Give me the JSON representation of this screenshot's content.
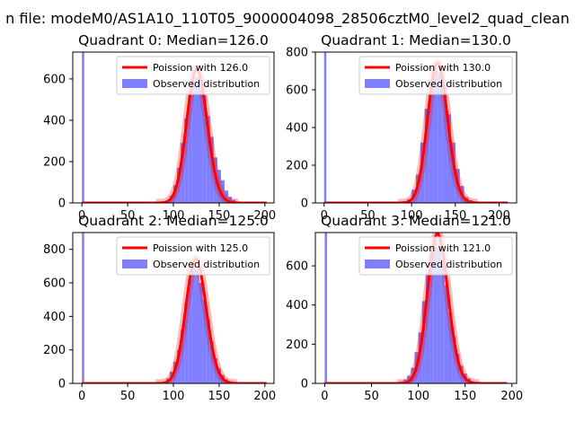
{
  "figure": {
    "suptitle": "n file: modeM0/AS1A10_110T05_9000004098_28506cztM0_level2_quad_clean",
    "colors": {
      "fit_line": "#ff0000",
      "histogram": "#7f7fff"
    }
  },
  "chart_data": [
    {
      "type": "bar",
      "title": "Quadrant 0: Median=126.0",
      "median": 126.0,
      "xlim": [
        -10,
        210
      ],
      "ylim": [
        0,
        730
      ],
      "xticks": [
        0,
        50,
        100,
        150,
        200
      ],
      "yticks": [
        0,
        200,
        400,
        600
      ],
      "legend": {
        "position": "top-right",
        "line_label": "Poission with 126.0",
        "bar_label": "Observed distribution"
      },
      "spike_bin": {
        "x": [
          0,
          2.5
        ],
        "value": 730
      },
      "bin_width": 4,
      "bins_x": [
        84,
        88,
        92,
        96,
        100,
        104,
        108,
        112,
        116,
        120,
        124,
        128,
        132,
        136,
        140,
        144,
        148,
        152,
        156,
        160,
        164,
        168
      ],
      "values": [
        2,
        4,
        12,
        35,
        85,
        170,
        290,
        410,
        520,
        590,
        610,
        600,
        520,
        420,
        320,
        220,
        160,
        110,
        60,
        30,
        15,
        5
      ],
      "fit_xrange": [
        0,
        202
      ]
    },
    {
      "type": "bar",
      "title": "Quadrant 1: Median=130.0",
      "median": 130.0,
      "xlim": [
        -10,
        220
      ],
      "ylim": [
        0,
        800
      ],
      "xticks": [
        0,
        50,
        100,
        150,
        200
      ],
      "yticks": [
        0,
        200,
        400,
        600,
        800
      ],
      "legend": {
        "position": "top-right",
        "line_label": "Poission with 130.0",
        "bar_label": "Observed distribution"
      },
      "spike_bin": {
        "x": [
          0,
          2.5
        ],
        "value": 800
      },
      "bin_width": 5,
      "bins_x": [
        85,
        90,
        95,
        100,
        105,
        110,
        115,
        120,
        125,
        130,
        135,
        140,
        145,
        150,
        155,
        160,
        165,
        170,
        175
      ],
      "values": [
        5,
        10,
        20,
        70,
        150,
        320,
        500,
        640,
        700,
        690,
        620,
        470,
        320,
        180,
        90,
        30,
        15,
        5,
        2
      ],
      "fit_xrange": [
        0,
        210
      ]
    },
    {
      "type": "bar",
      "title": "Quadrant 2: Median=125.0",
      "median": 125.0,
      "xlim": [
        -10,
        210
      ],
      "ylim": [
        0,
        900
      ],
      "xticks": [
        0,
        50,
        100,
        150,
        200
      ],
      "yticks": [
        0,
        200,
        400,
        600,
        800
      ],
      "legend": {
        "position": "top-right",
        "line_label": "Poission with 125.0",
        "bar_label": "Observed distribution"
      },
      "spike_bin": {
        "x": [
          0,
          2.5
        ],
        "value": 900
      },
      "bin_width": 4,
      "bins_x": [
        72,
        84,
        88,
        92,
        96,
        100,
        104,
        108,
        112,
        116,
        120,
        124,
        128,
        132,
        136,
        140,
        144,
        148,
        152,
        156,
        160,
        164
      ],
      "values": [
        3,
        5,
        10,
        30,
        70,
        130,
        200,
        320,
        480,
        620,
        700,
        680,
        600,
        500,
        380,
        250,
        150,
        90,
        50,
        25,
        10,
        4
      ],
      "fit_xrange": [
        0,
        202
      ]
    },
    {
      "type": "bar",
      "title": "Quadrant 3: Median=121.0",
      "median": 121.0,
      "xlim": [
        -10,
        205
      ],
      "ylim": [
        0,
        770
      ],
      "xticks": [
        0,
        50,
        100,
        150,
        200
      ],
      "yticks": [
        0,
        200,
        400,
        600
      ],
      "legend": {
        "position": "top-right",
        "line_label": "Poission with 121.0",
        "bar_label": "Observed distribution"
      },
      "spike_bin": {
        "x": [
          0,
          2.5
        ],
        "value": 770
      },
      "bin_width": 4,
      "bins_x": [
        76,
        80,
        84,
        88,
        92,
        96,
        100,
        104,
        108,
        112,
        116,
        120,
        124,
        128,
        132,
        136,
        140,
        144,
        148,
        152,
        156,
        160
      ],
      "values": [
        5,
        10,
        20,
        40,
        80,
        160,
        260,
        420,
        560,
        660,
        720,
        690,
        610,
        500,
        360,
        240,
        150,
        90,
        50,
        25,
        10,
        4
      ],
      "fit_xrange": [
        0,
        195
      ]
    }
  ]
}
